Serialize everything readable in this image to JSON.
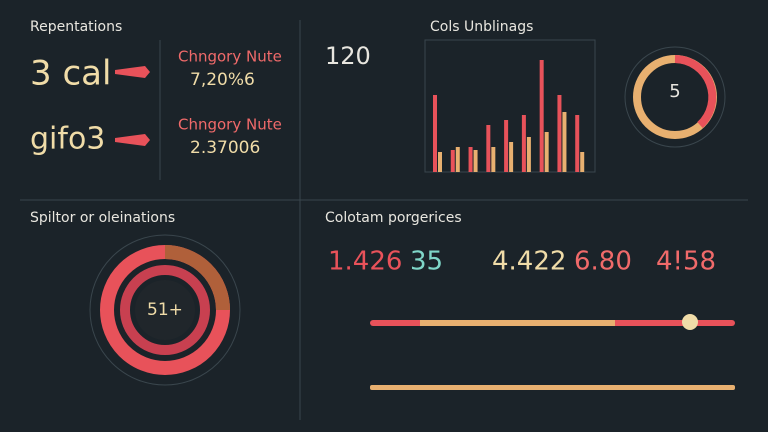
{
  "panel1": {
    "title": "Repentations",
    "items": [
      {
        "big": "3 cal",
        "note": "Chngory Nute",
        "value": "7,20%6"
      },
      {
        "big": "gifo3",
        "note": "Chngory Nute",
        "value": "2.37006"
      }
    ]
  },
  "panel2": {
    "title": "Spiltor or oleinations",
    "center": "51+"
  },
  "panel3": {
    "big": "120",
    "gauge": "5"
  },
  "chart_data": {
    "type": "bar",
    "title": "Cols Unblinags",
    "categories": [
      null,
      null,
      null,
      null,
      null,
      null,
      null,
      null,
      null
    ],
    "ylim": [
      0,
      132
    ],
    "series": [
      {
        "color": "#e8525a",
        "values": [
          77,
          22,
          25,
          47,
          52,
          57,
          112,
          77,
          57
        ]
      },
      {
        "color": "#e8b070",
        "values": [
          20,
          25,
          22,
          25,
          30,
          35,
          40,
          60,
          20
        ]
      }
    ]
  },
  "panel4": {
    "title": "Colotam porgerices",
    "metrics": [
      {
        "value": "1.426",
        "color": "#e8525a"
      },
      {
        "value": "35",
        "color": "#7fd6c8"
      },
      {
        "value": "4.422",
        "color": "#f0dca8"
      },
      {
        "value": "6.80",
        "color": "#f06a6a"
      },
      {
        "value": "4!58",
        "color": "#f06a6a"
      }
    ]
  }
}
